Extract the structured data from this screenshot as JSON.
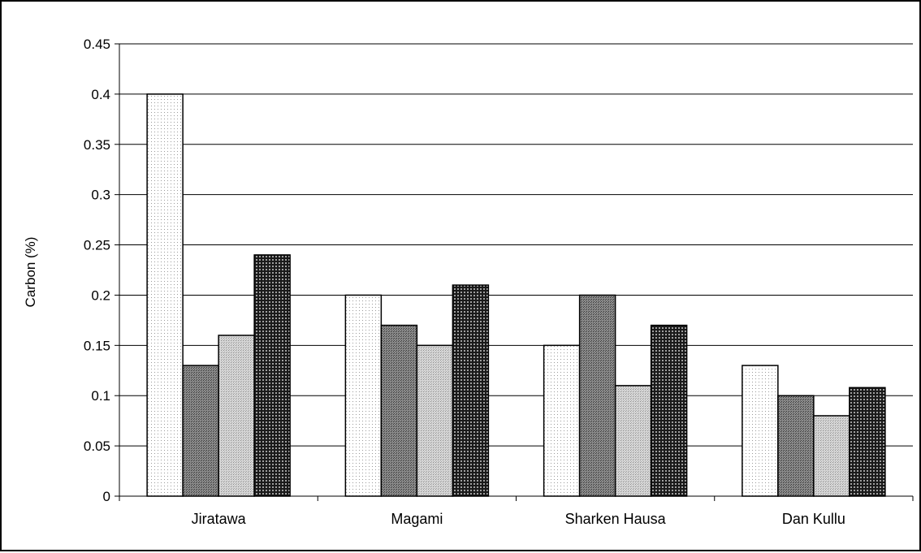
{
  "chart_data": {
    "type": "bar",
    "title": "",
    "xlabel": "",
    "ylabel": "Carbon (%)",
    "ylim": [
      0,
      0.45
    ],
    "yticks": [
      "0",
      "0.05",
      "0.1",
      "0.15",
      "0.2",
      "0.25",
      "0.3",
      "0.35",
      "0.4",
      "0.45"
    ],
    "grid": true,
    "legend": "none",
    "categories": [
      "Jiratawa",
      "Magami",
      "Sharken Hausa",
      "Dan Kullu"
    ],
    "series": [
      {
        "values": [
          0.4,
          0.2,
          0.15,
          0.13
        ],
        "pattern": "light-dots",
        "color": "#ffffff"
      },
      {
        "values": [
          0.13,
          0.17,
          0.2,
          0.1
        ],
        "pattern": "dark-gray",
        "color": "#7a7a7a"
      },
      {
        "values": [
          0.16,
          0.15,
          0.11,
          0.08
        ],
        "pattern": "light-gray",
        "color": "#c8c8c8"
      },
      {
        "values": [
          0.24,
          0.21,
          0.17,
          0.108
        ],
        "pattern": "black-dots",
        "color": "#000000"
      }
    ]
  }
}
